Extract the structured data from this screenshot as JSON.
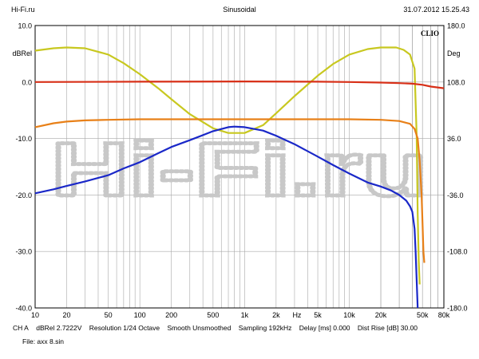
{
  "header": {
    "site": "Hi-Fi.ru",
    "title": "Sinusoidal",
    "timestamp": "31.07.2012 15.25.43"
  },
  "footer": {
    "channel": "CH A",
    "units": "dBRel 2.7222V",
    "resolution": "Resolution 1/24 Octave",
    "smooth": "Smooth Unsmoothed",
    "sampling": "Sampling 192kHz",
    "delay": "Delay [ms] 0.000",
    "dist_rise": "Dist Rise [dB] 30.00",
    "file": "File: ахх 8.sin"
  },
  "chart_data": {
    "type": "line",
    "brand": "CLIO",
    "watermark": "Hi-Fi.ru",
    "x_scale": "log",
    "xlim": [
      10,
      80000
    ],
    "ylim_left": [
      -40,
      10
    ],
    "ylim_right": [
      -180,
      180
    ],
    "grid": true,
    "left_axis_label": "dBRel",
    "right_axis_label": "Deg",
    "x_unit_label": "Hz",
    "x_ticks": [
      "10",
      "20",
      "50",
      "100",
      "200",
      "500",
      "1k",
      "2k",
      "5k",
      "10k",
      "20k",
      "50k",
      "80k"
    ],
    "y_ticks_left": [
      "10.0",
      "0.0",
      "-10.0",
      "-20.0",
      "-30.0",
      "-40.0"
    ],
    "y_ticks_right": [
      "180.0",
      "108.0",
      "36.0",
      "-36.0",
      "-108.0",
      "-180.0"
    ],
    "series": [
      {
        "color": "#d83018",
        "axis": "left",
        "points": [
          [
            10,
            0
          ],
          [
            100,
            0.05
          ],
          [
            1000,
            0.1
          ],
          [
            5000,
            0.05
          ],
          [
            10000,
            0
          ],
          [
            20000,
            -0.1
          ],
          [
            30000,
            -0.2
          ],
          [
            40000,
            -0.3
          ],
          [
            50000,
            -0.5
          ],
          [
            60000,
            -0.8
          ],
          [
            80000,
            -1.1
          ]
        ]
      },
      {
        "color": "#e88018",
        "axis": "left",
        "points": [
          [
            10,
            -8
          ],
          [
            15,
            -7.3
          ],
          [
            20,
            -7.0
          ],
          [
            30,
            -6.8
          ],
          [
            50,
            -6.7
          ],
          [
            100,
            -6.6
          ],
          [
            1000,
            -6.6
          ],
          [
            10000,
            -6.6
          ],
          [
            20000,
            -6.7
          ],
          [
            30000,
            -6.9
          ],
          [
            38000,
            -7.4
          ],
          [
            42000,
            -8.3
          ],
          [
            45000,
            -10
          ],
          [
            47000,
            -14
          ],
          [
            49000,
            -20
          ],
          [
            51000,
            -30
          ],
          [
            52000,
            -32
          ]
        ]
      },
      {
        "color": "#c8c820",
        "axis": "right",
        "points": [
          [
            10,
            148
          ],
          [
            15,
            151
          ],
          [
            20,
            152
          ],
          [
            30,
            151
          ],
          [
            50,
            143
          ],
          [
            70,
            132
          ],
          [
            100,
            118
          ],
          [
            150,
            100
          ],
          [
            200,
            86
          ],
          [
            300,
            67
          ],
          [
            500,
            49
          ],
          [
            700,
            43
          ],
          [
            1000,
            43
          ],
          [
            1500,
            53
          ],
          [
            2000,
            68
          ],
          [
            3000,
            90
          ],
          [
            5000,
            116
          ],
          [
            7000,
            131
          ],
          [
            10000,
            143
          ],
          [
            15000,
            150
          ],
          [
            20000,
            152
          ],
          [
            28000,
            152
          ],
          [
            33000,
            149
          ],
          [
            38000,
            143
          ],
          [
            42000,
            125
          ],
          [
            44000,
            40
          ],
          [
            45000,
            -60
          ],
          [
            46000,
            -120
          ],
          [
            47000,
            -150
          ]
        ]
      },
      {
        "color": "#1a28c8",
        "axis": "left",
        "points": [
          [
            10,
            -19.7
          ],
          [
            15,
            -19
          ],
          [
            20,
            -18.4
          ],
          [
            30,
            -17.6
          ],
          [
            50,
            -16.5
          ],
          [
            70,
            -15.3
          ],
          [
            100,
            -14.2
          ],
          [
            150,
            -12.6
          ],
          [
            200,
            -11.5
          ],
          [
            300,
            -10.3
          ],
          [
            500,
            -8.7
          ],
          [
            700,
            -8.0
          ],
          [
            800,
            -7.9
          ],
          [
            1000,
            -8.0
          ],
          [
            1500,
            -8.6
          ],
          [
            2000,
            -9.5
          ],
          [
            3000,
            -11
          ],
          [
            5000,
            -13.2
          ],
          [
            7000,
            -14.7
          ],
          [
            10000,
            -16.2
          ],
          [
            15000,
            -17.8
          ],
          [
            20000,
            -18.5
          ],
          [
            25000,
            -19.2
          ],
          [
            30000,
            -20
          ],
          [
            35000,
            -21
          ],
          [
            38000,
            -22
          ],
          [
            40000,
            -23
          ],
          [
            42000,
            -26
          ],
          [
            43000,
            -30
          ],
          [
            44000,
            -35
          ],
          [
            45000,
            -40
          ]
        ]
      }
    ]
  }
}
